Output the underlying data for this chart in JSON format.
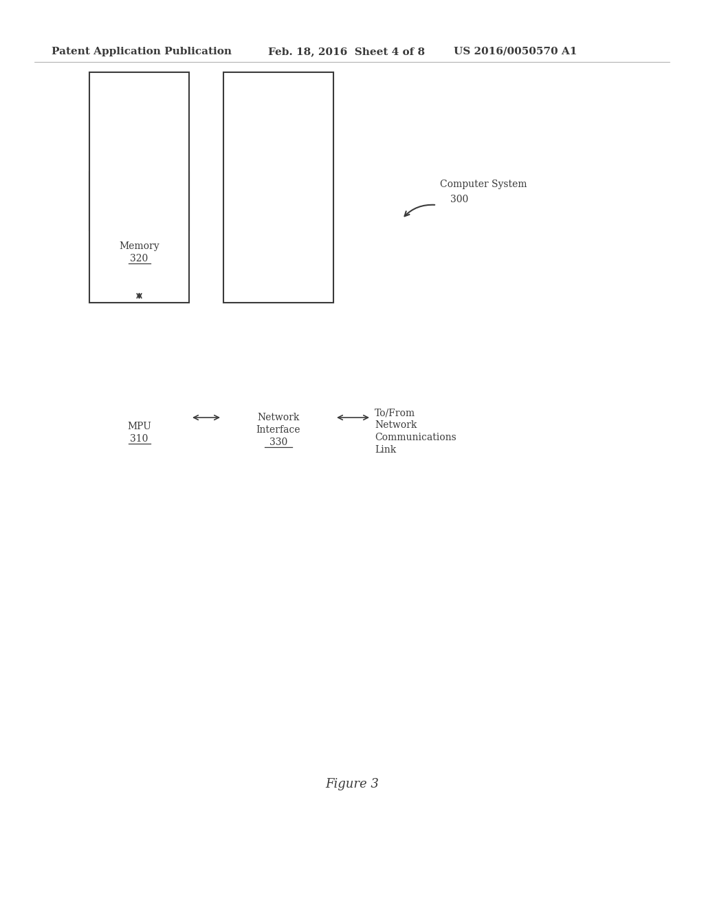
{
  "bg_color": "#ffffff",
  "header_left": "Patent Application Publication",
  "header_mid": "Feb. 18, 2016  Sheet 4 of 8",
  "header_right": "US 2016/0050570 A1",
  "text_color": "#3a3a3a",
  "box_color": "#3a3a3a",
  "arrow_color": "#3a3a3a",
  "figure_label": "Figure 3",
  "cs_label_line1": "Computer System",
  "cs_label_line2": "300",
  "memory_label_line1": "Memory",
  "memory_label_line2": "320",
  "mpu_label_line1": "MPU",
  "mpu_label_line2": "310",
  "ni_label_line1": "Network",
  "ni_label_line2": "Interface",
  "ni_label_line3": "330",
  "tofrom_label_line1": "To/From",
  "tofrom_label_line2": "Network",
  "tofrom_label_line3": "Communications",
  "tofrom_label_line4": "Link"
}
